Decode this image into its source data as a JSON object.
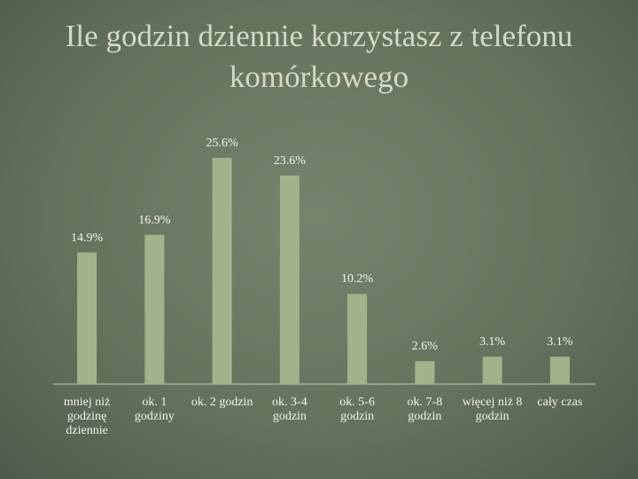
{
  "chart_data": {
    "type": "bar",
    "title": "Ile godzin dziennie korzystasz z telefonu komórkowego",
    "categories": [
      "mniej niż godzinę dziennie",
      "ok. 1 godziny",
      "ok. 2 godzin",
      "ok. 3-4 godzin",
      "ok. 5-6 godzin",
      "ok. 7-8 godzin",
      "więcej niż 8 godzin",
      "cały czas"
    ],
    "values": [
      14.9,
      16.9,
      25.6,
      23.6,
      10.2,
      2.6,
      3.1,
      3.1
    ],
    "value_labels": [
      "14.9%",
      "16.9%",
      "25.6%",
      "23.6%",
      "10.2%",
      "2.6%",
      "3.1%",
      "3.1%"
    ],
    "color": "#a3b28b"
  }
}
